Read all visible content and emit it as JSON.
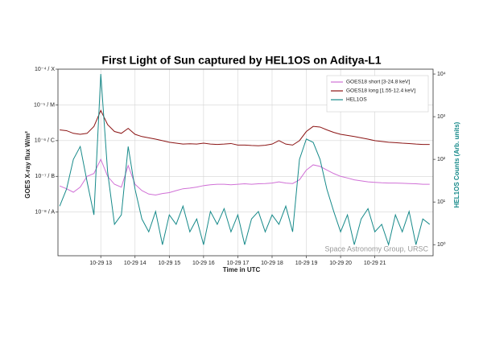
{
  "chart_data": {
    "type": "line",
    "title": "First Light of Sun captured by HEL1OS on Aditya-L1",
    "x_label": "Time in UTC",
    "y_label": "GOES X-ray flux W/m²",
    "y2_label": "HEL1OS Counts (Arb. units)",
    "annotation": "Space Astronomy Group, URSC",
    "ylog": true,
    "y2log": true,
    "grid": true,
    "legend": "upper right",
    "x": [
      11.8,
      12,
      12.2,
      12.4,
      12.6,
      12.8,
      13,
      13.2,
      13.4,
      13.6,
      13.8,
      14,
      14.2,
      14.4,
      14.6,
      14.8,
      15,
      15.2,
      15.4,
      15.6,
      15.8,
      16,
      16.2,
      16.4,
      16.6,
      16.8,
      17,
      17.2,
      17.4,
      17.6,
      17.8,
      18,
      18.2,
      18.4,
      18.6,
      18.8,
      19,
      19.2,
      19.4,
      19.6,
      19.8,
      20,
      20.2,
      20.4,
      20.6,
      20.8,
      21,
      21.2,
      21.4,
      21.6,
      21.8,
      22,
      22.2,
      22.4,
      22.6
    ],
    "xlim": [
      11.75,
      22.7
    ],
    "xticks": [
      {
        "value": 13,
        "label": "10-29 13"
      },
      {
        "value": 14,
        "label": "10-29 14"
      },
      {
        "value": 15,
        "label": "10-29 15"
      },
      {
        "value": 16,
        "label": "10-29 16"
      },
      {
        "value": 17,
        "label": "10-29 17"
      },
      {
        "value": 18,
        "label": "10-29 18"
      },
      {
        "value": 19,
        "label": "10-29 19"
      },
      {
        "value": 20,
        "label": "10-29 20"
      },
      {
        "value": 21,
        "label": "10-29 21"
      }
    ],
    "ylim": [
      6e-10,
      0.0001
    ],
    "yticks": [
      {
        "value": 1e-08,
        "label": "10⁻⁸ / A"
      },
      {
        "value": 1e-07,
        "label": "10⁻⁷ / B"
      },
      {
        "value": 1e-06,
        "label": "10⁻⁶ / C"
      },
      {
        "value": 1e-05,
        "label": "10⁻⁵ / M"
      },
      {
        "value": 0.0001,
        "label": "10⁻⁴ / X"
      }
    ],
    "y2lim": [
      0.55,
      13000
    ],
    "y2ticks": [
      {
        "value": 1,
        "label": "10⁰"
      },
      {
        "value": 10,
        "label": "10¹"
      },
      {
        "value": 100,
        "label": "10²"
      },
      {
        "value": 1000,
        "label": "10³"
      },
      {
        "value": 10000,
        "label": "10⁴"
      }
    ],
    "series": [
      {
        "name": "GOES18 short  [3-24.8 keV]",
        "color": "#d070d6",
        "values": [
          5.4e-08,
          4.5e-08,
          3.6e-08,
          5e-08,
          1e-07,
          1.2e-07,
          3e-07,
          1e-07,
          6e-08,
          5e-08,
          2e-07,
          6e-08,
          4e-08,
          3.2e-08,
          3e-08,
          3.3e-08,
          3.5e-08,
          4e-08,
          4.5e-08,
          4.7e-08,
          5e-08,
          5.5e-08,
          5.8e-08,
          6e-08,
          6e-08,
          5.8e-08,
          6e-08,
          6.2e-08,
          6e-08,
          6.2e-08,
          6.3e-08,
          6.5e-08,
          7e-08,
          6.5e-08,
          6.3e-08,
          8e-08,
          1.5e-07,
          2.1e-07,
          1.9e-07,
          1.5e-07,
          1.2e-07,
          1e-07,
          9e-08,
          8e-08,
          7.5e-08,
          7e-08,
          6.8e-08,
          6.6e-08,
          6.5e-08,
          6.5e-08,
          6.4e-08,
          6.3e-08,
          6.2e-08,
          6e-08,
          6e-08
        ]
      },
      {
        "name": "GOES18 long  [1.55-12.4 keV]",
        "color": "#8b1414",
        "values": [
          2e-06,
          1.9e-06,
          1.6e-06,
          1.5e-06,
          1.6e-06,
          2.5e-06,
          7e-06,
          2.8e-06,
          1.8e-06,
          1.6e-06,
          2.2e-06,
          1.5e-06,
          1.3e-06,
          1.2e-06,
          1.1e-06,
          1e-06,
          9e-07,
          8.5e-07,
          8e-07,
          8.2e-07,
          8e-07,
          8.5e-07,
          8e-07,
          7.8e-07,
          8e-07,
          8.3e-07,
          7.5e-07,
          7.5e-07,
          7.3e-07,
          7.2e-07,
          7.4e-07,
          8e-07,
          1e-06,
          8e-07,
          7.5e-07,
          1e-06,
          1.8e-06,
          2.5e-06,
          2.4e-06,
          2e-06,
          1.7e-06,
          1.5e-06,
          1.4e-06,
          1.3e-06,
          1.2e-06,
          1.1e-06,
          1e-06,
          9.5e-07,
          9e-07,
          8.8e-07,
          8.5e-07,
          8.3e-07,
          8e-07,
          7.8e-07,
          7.8e-07
        ]
      },
      {
        "name": "HEL1OS",
        "color": "#178a8a",
        "axis": "y2",
        "values": [
          8,
          20,
          100,
          200,
          30,
          5,
          10000,
          50,
          3,
          5,
          200,
          20,
          4,
          2,
          6,
          1,
          5,
          3,
          8,
          2,
          4,
          1,
          6,
          3,
          7,
          2,
          5,
          1,
          4,
          6,
          2,
          5,
          3,
          8,
          2,
          100,
          300,
          250,
          100,
          20,
          6,
          2,
          5,
          1,
          4,
          7,
          2,
          3,
          1,
          5,
          2,
          6,
          1,
          4,
          3
        ]
      }
    ]
  }
}
